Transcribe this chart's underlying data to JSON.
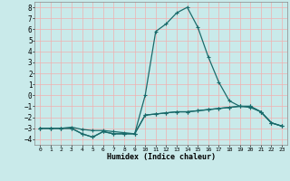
{
  "xlabel": "Humidex (Indice chaleur)",
  "xlim": [
    -0.5,
    23.5
  ],
  "ylim": [
    -4.5,
    8.5
  ],
  "xticks": [
    0,
    1,
    2,
    3,
    4,
    5,
    6,
    7,
    8,
    9,
    10,
    11,
    12,
    13,
    14,
    15,
    16,
    17,
    18,
    19,
    20,
    21,
    22,
    23
  ],
  "yticks": [
    -4,
    -3,
    -2,
    -1,
    0,
    1,
    2,
    3,
    4,
    5,
    6,
    7,
    8
  ],
  "background_color": "#c9eaea",
  "grid_color": "#f0b0b0",
  "line_color": "#1a6b6b",
  "line_width": 0.9,
  "marker": "+",
  "marker_size": 3.5,
  "series1": [
    [
      0,
      -3
    ],
    [
      1,
      -3
    ],
    [
      2,
      -3
    ],
    [
      3,
      -3
    ],
    [
      4,
      -3.5
    ],
    [
      5,
      -3.8
    ],
    [
      6,
      -3.3
    ],
    [
      7,
      -3.5
    ],
    [
      8,
      -3.5
    ],
    [
      9,
      -3.5
    ],
    [
      10,
      0
    ],
    [
      11,
      5.8
    ],
    [
      12,
      6.5
    ],
    [
      13,
      7.5
    ],
    [
      14,
      8.0
    ],
    [
      15,
      6.2
    ],
    [
      16,
      3.5
    ],
    [
      17,
      1.2
    ],
    [
      18,
      -0.5
    ],
    [
      19,
      -1.0
    ],
    [
      20,
      -1.1
    ],
    [
      21,
      -1.5
    ],
    [
      22,
      -2.5
    ],
    [
      23,
      -2.8
    ]
  ],
  "series2": [
    [
      0,
      -3
    ],
    [
      1,
      -3
    ],
    [
      2,
      -3
    ],
    [
      3,
      -2.9
    ],
    [
      4,
      -3.1
    ],
    [
      5,
      -3.2
    ],
    [
      6,
      -3.2
    ],
    [
      7,
      -3.3
    ],
    [
      8,
      -3.4
    ],
    [
      9,
      -3.5
    ],
    [
      10,
      -1.8
    ],
    [
      11,
      -1.7
    ],
    [
      12,
      -1.6
    ],
    [
      13,
      -1.5
    ],
    [
      14,
      -1.5
    ],
    [
      15,
      -1.4
    ],
    [
      16,
      -1.3
    ],
    [
      17,
      -1.2
    ],
    [
      18,
      -1.1
    ],
    [
      19,
      -1.0
    ],
    [
      20,
      -1.0
    ],
    [
      21,
      -1.5
    ],
    [
      22,
      -2.5
    ],
    [
      23,
      -2.8
    ]
  ],
  "series3": [
    [
      0,
      -3
    ],
    [
      1,
      -3
    ],
    [
      2,
      -3
    ],
    [
      3,
      -3
    ],
    [
      4,
      -3.5
    ],
    [
      5,
      -3.8
    ],
    [
      6,
      -3.3
    ],
    [
      7,
      -3.5
    ],
    [
      8,
      -3.5
    ],
    [
      9,
      -3.5
    ],
    [
      10,
      -1.8
    ],
    [
      11,
      -1.7
    ],
    [
      12,
      -1.6
    ],
    [
      13,
      -1.5
    ],
    [
      14,
      -1.5
    ],
    [
      15,
      -1.4
    ],
    [
      16,
      -1.3
    ],
    [
      17,
      -1.2
    ],
    [
      18,
      -1.1
    ],
    [
      19,
      -1.0
    ],
    [
      20,
      -1.0
    ],
    [
      21,
      -1.5
    ],
    [
      22,
      -2.5
    ],
    [
      23,
      -2.8
    ]
  ]
}
